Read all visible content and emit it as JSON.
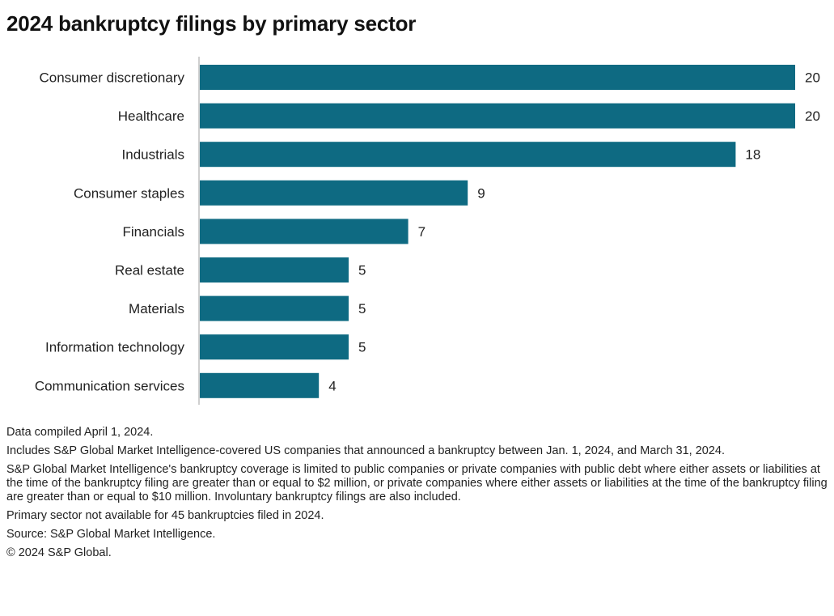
{
  "chart_data": {
    "type": "bar",
    "orientation": "horizontal",
    "title": "2024 bankruptcy filings by primary sector",
    "categories": [
      "Consumer discretionary",
      "Healthcare",
      "Industrials",
      "Consumer staples",
      "Financials",
      "Real estate",
      "Materials",
      "Information technology",
      "Communication services"
    ],
    "values": [
      20,
      20,
      18,
      9,
      7,
      5,
      5,
      5,
      4
    ],
    "xlim": [
      0,
      20
    ],
    "bar_color": "#0e6a82",
    "grid": false,
    "data_labels": true
  },
  "notes": [
    "Data compiled April 1, 2024.",
    "Includes S&P Global Market Intelligence-covered US companies that announced a bankruptcy between Jan. 1, 2024, and March 31, 2024.",
    "S&P Global Market Intelligence's bankruptcy coverage is limited to public companies or private companies with public debt where either assets or liabilities at the time of the bankruptcy filing are greater than or equal to $2 million, or private companies where either assets or liabilities at the time of the bankruptcy filing are greater than or equal to $10 million. Involuntary bankruptcy filings are also included.",
    "Primary sector not available for 45 bankruptcies filed in 2024.",
    "Source: S&P Global Market Intelligence.",
    "© 2024 S&P Global."
  ]
}
